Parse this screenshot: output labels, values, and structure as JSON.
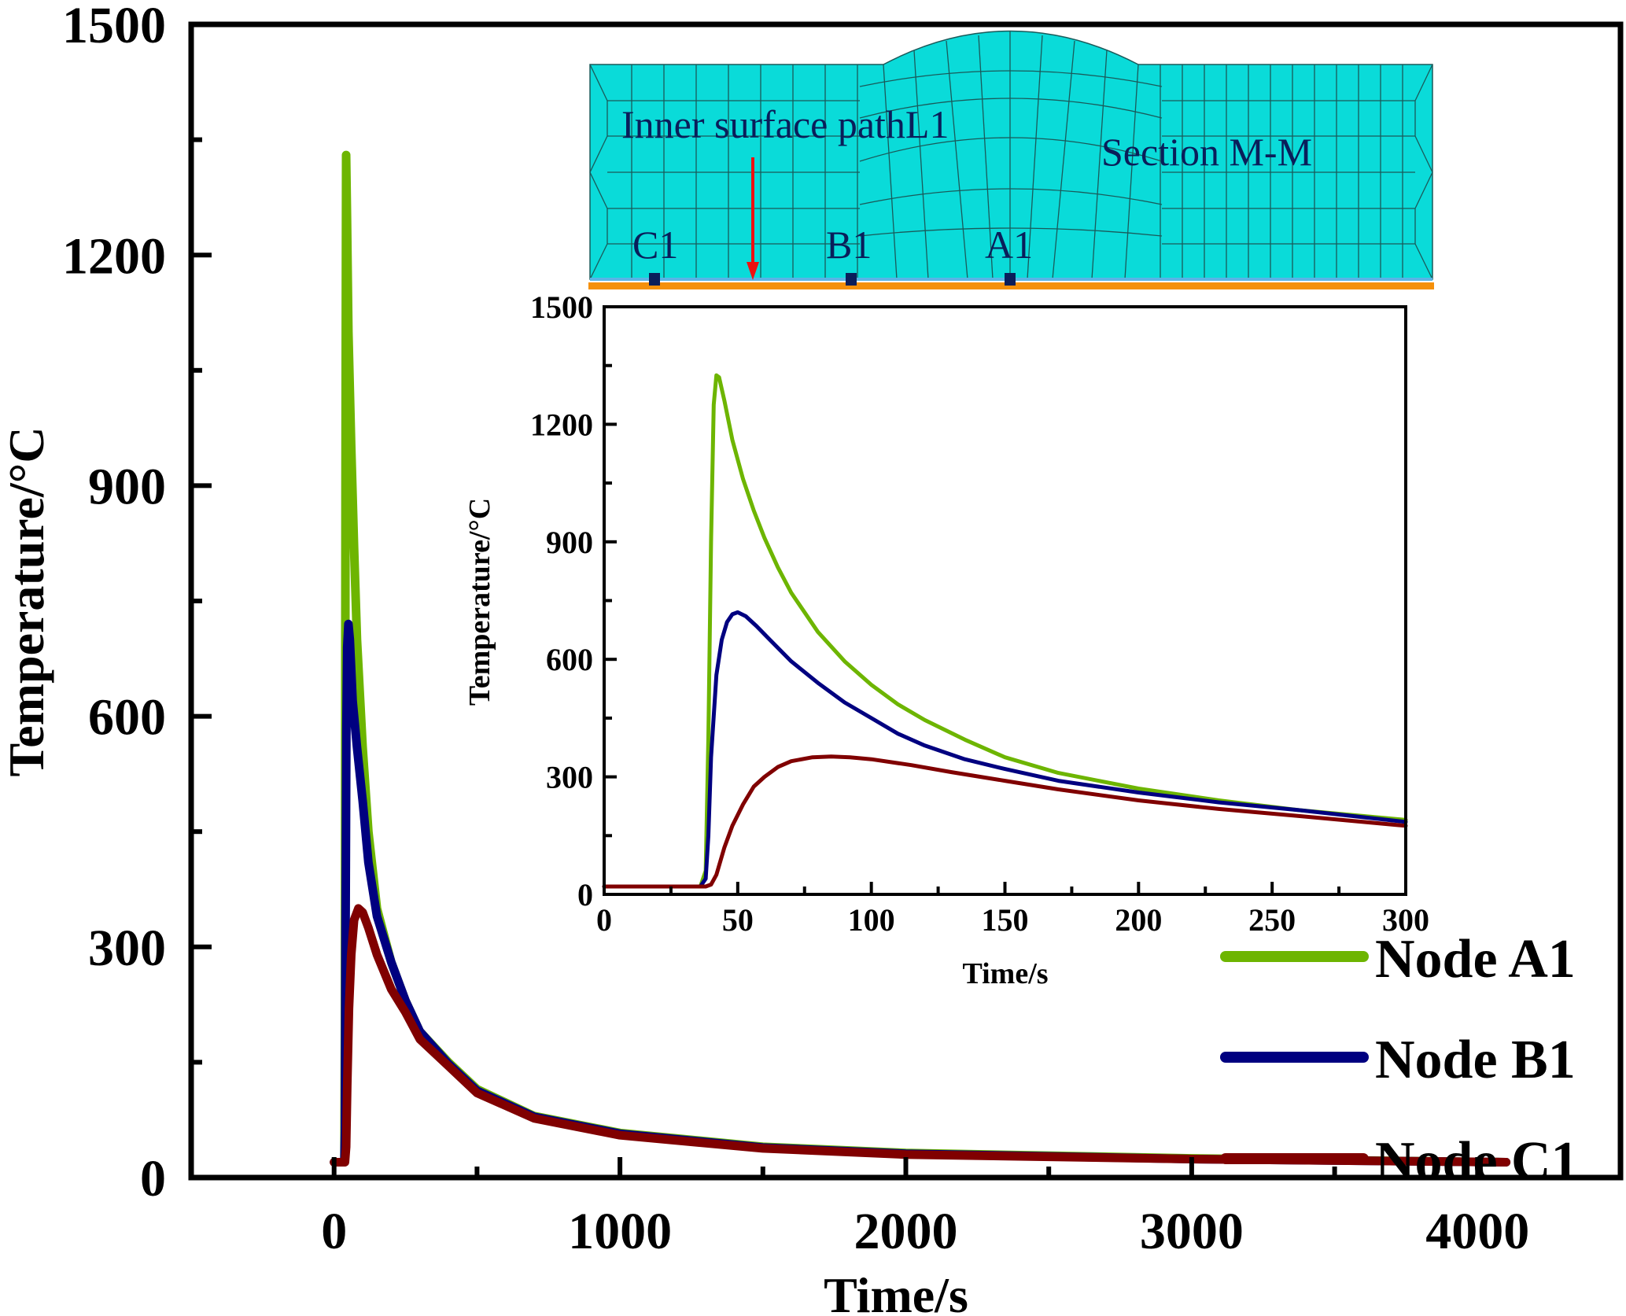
{
  "chart_data": [
    {
      "id": "main",
      "type": "line",
      "xlabel": "Time/s",
      "ylabel": "Temperature/°C",
      "xlim": [
        -500,
        4500
      ],
      "ylim": [
        0,
        1500
      ],
      "xticks": [
        0,
        1000,
        2000,
        3000,
        4000
      ],
      "xticks_minor": [
        500,
        1500,
        2500,
        3500
      ],
      "yticks": [
        0,
        300,
        600,
        900,
        1200,
        1500
      ],
      "yticks_minor": [
        150,
        450,
        750,
        1050,
        1350
      ],
      "grid": false,
      "legend": "bottom-right",
      "series": [
        {
          "name": "Node A1",
          "color": "#6db500",
          "x": [
            0,
            36,
            38,
            40,
            42,
            45,
            50,
            60,
            70,
            80,
            100,
            120,
            150,
            200,
            250,
            300,
            400,
            500,
            700,
            1000,
            1500,
            2000,
            3000,
            4100
          ],
          "y": [
            20,
            20,
            200,
            900,
            1330,
            1250,
            1100,
            950,
            820,
            700,
            560,
            450,
            350,
            280,
            230,
            190,
            150,
            115,
            80,
            58,
            40,
            32,
            25,
            20
          ]
        },
        {
          "name": "Node B1",
          "color": "#000080",
          "x": [
            0,
            36,
            38,
            40,
            43,
            46,
            50,
            55,
            65,
            80,
            100,
            120,
            150,
            200,
            250,
            300,
            400,
            500,
            700,
            1000,
            1500,
            2000,
            3000,
            4100
          ],
          "y": [
            20,
            20,
            60,
            300,
            580,
            690,
            720,
            700,
            620,
            560,
            490,
            410,
            340,
            280,
            230,
            190,
            148,
            113,
            79,
            57,
            39,
            31,
            24,
            20
          ],
          "x_note": ""
        },
        {
          "name": "Node C1",
          "color": "#800000",
          "x": [
            0,
            38,
            42,
            46,
            52,
            60,
            70,
            85,
            100,
            120,
            150,
            200,
            250,
            300,
            400,
            500,
            700,
            1000,
            1500,
            2000,
            3000,
            4100
          ],
          "y": [
            20,
            20,
            40,
            120,
            220,
            290,
            335,
            350,
            345,
            325,
            290,
            245,
            215,
            180,
            145,
            110,
            77,
            55,
            38,
            30,
            24,
            20
          ]
        }
      ]
    },
    {
      "id": "inset",
      "type": "line",
      "xlabel": "Time/s",
      "ylabel": "Temperature/°C",
      "xlim": [
        0,
        300
      ],
      "ylim": [
        0,
        1500
      ],
      "xticks": [
        0,
        50,
        100,
        150,
        200,
        250,
        300
      ],
      "xticks_minor": [
        25,
        75,
        125,
        175,
        225,
        275
      ],
      "yticks": [
        0,
        300,
        600,
        900,
        1200,
        1500
      ],
      "yticks_minor": [
        150,
        450,
        750,
        1050,
        1350
      ],
      "grid": false,
      "series": [
        {
          "name": "Node A1",
          "color": "#6db500",
          "x": [
            0,
            36,
            38,
            39,
            40,
            41,
            42,
            43,
            45,
            48,
            52,
            56,
            60,
            65,
            70,
            80,
            90,
            100,
            110,
            120,
            135,
            150,
            170,
            200,
            230,
            260,
            300
          ],
          "y": [
            20,
            20,
            60,
            400,
            900,
            1250,
            1325,
            1320,
            1260,
            1160,
            1060,
            980,
            910,
            835,
            770,
            670,
            595,
            535,
            485,
            445,
            395,
            350,
            310,
            270,
            240,
            215,
            190
          ]
        },
        {
          "name": "Node B1",
          "color": "#000080",
          "x": [
            0,
            36,
            38,
            39,
            40,
            42,
            44,
            46,
            48,
            50,
            53,
            57,
            62,
            70,
            80,
            90,
            100,
            110,
            120,
            135,
            150,
            170,
            200,
            230,
            260,
            300
          ],
          "y": [
            20,
            20,
            40,
            150,
            350,
            560,
            650,
            695,
            715,
            720,
            710,
            685,
            650,
            595,
            540,
            490,
            450,
            410,
            380,
            345,
            320,
            290,
            260,
            235,
            215,
            185
          ]
        },
        {
          "name": "Node C1",
          "color": "#800000",
          "x": [
            0,
            38,
            40,
            42,
            45,
            48,
            52,
            56,
            60,
            65,
            70,
            78,
            85,
            92,
            100,
            115,
            130,
            150,
            170,
            200,
            230,
            260,
            300
          ],
          "y": [
            20,
            20,
            25,
            50,
            120,
            175,
            230,
            275,
            300,
            325,
            340,
            350,
            352,
            350,
            345,
            330,
            312,
            290,
            268,
            240,
            218,
            200,
            175
          ]
        }
      ]
    }
  ],
  "main": {
    "xlabel": "Time/s",
    "ylabel": "Temperature/°C",
    "xtick_labels": [
      "0",
      "1000",
      "2000",
      "3000",
      "4000"
    ],
    "ytick_labels": [
      "0",
      "300",
      "600",
      "900",
      "1200",
      "1500"
    ]
  },
  "inset": {
    "xlabel": "Time/s",
    "ylabel": "Temperature/°C",
    "xtick_labels": [
      "0",
      "50",
      "100",
      "150",
      "200",
      "250",
      "300"
    ],
    "ytick_labels": [
      "0",
      "300",
      "600",
      "900",
      "1200",
      "1500"
    ]
  },
  "legend": {
    "items": [
      {
        "label": "Node A1",
        "color": "#6db500"
      },
      {
        "label": "Node B1",
        "color": "#000080"
      },
      {
        "label": "Node C1",
        "color": "#800000"
      }
    ]
  },
  "mesh_diagram": {
    "path_label": "Inner surface pathL1",
    "section_label": "Section M-M",
    "node_labels": [
      "C1",
      "B1",
      "A1"
    ],
    "fill_color": "#0adbd9",
    "line_color": "#1a5a5a",
    "surface_color": "#f5900a",
    "arrow_color": "#ee1111",
    "marker_color": "#0a1e5a"
  }
}
